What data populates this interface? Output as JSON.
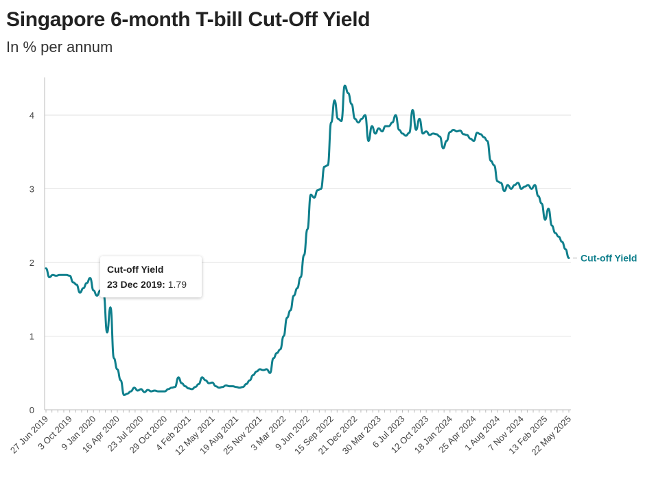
{
  "title": "Singapore 6-month T-bill Cut-Off Yield",
  "subtitle": "In % per annum",
  "colors": {
    "series": "#0f7f8c",
    "grid": "#e2e2e2",
    "axis": "#bbbbbb"
  },
  "tooltip": {
    "series_name": "Cut-off Yield",
    "date": "23 Dec 2019:",
    "value": "1.79"
  },
  "chart_data": {
    "type": "line",
    "title": "Singapore 6-month T-bill Cut-Off Yield",
    "subtitle": "In % per annum",
    "ylim": [
      0,
      4.5
    ],
    "yticks": [
      0,
      1,
      2,
      3,
      4
    ],
    "grid": true,
    "x_tick_labels": [
      "27 Jun 2019",
      "3 Oct 2019",
      "9 Jan 2020",
      "16 Apr 2020",
      "23 Jul 2020",
      "29 Oct 2020",
      "4 Feb 2021",
      "12 May 2021",
      "19 Aug 2021",
      "25 Nov 2021",
      "3 Mar 2022",
      "9 Jun 2022",
      "15 Sep 2022",
      "21 Dec 2022",
      "30 Mar 2023",
      "6 Jul 2023",
      "12 Oct 2023",
      "18 Jan 2024",
      "25 Apr 2024",
      "1 Aug 2024",
      "7 Nov 2024",
      "13 Feb 2025",
      "22 May 2025"
    ],
    "series": [
      {
        "name": "Cut-off Yield",
        "label_position": "end",
        "values": [
          1.92,
          1.8,
          1.83,
          1.82,
          1.83,
          1.83,
          1.83,
          1.82,
          1.73,
          1.7,
          1.59,
          1.65,
          1.72,
          1.79,
          1.62,
          1.55,
          1.62,
          1.56,
          1.05,
          1.39,
          0.7,
          0.55,
          0.4,
          0.2,
          0.22,
          0.25,
          0.3,
          0.26,
          0.28,
          0.24,
          0.27,
          0.25,
          0.26,
          0.25,
          0.25,
          0.25,
          0.28,
          0.3,
          0.31,
          0.44,
          0.36,
          0.32,
          0.29,
          0.28,
          0.31,
          0.35,
          0.44,
          0.4,
          0.36,
          0.37,
          0.32,
          0.3,
          0.31,
          0.33,
          0.32,
          0.32,
          0.31,
          0.3,
          0.31,
          0.35,
          0.4,
          0.47,
          0.52,
          0.55,
          0.54,
          0.55,
          0.5,
          0.7,
          0.77,
          0.82,
          1.0,
          1.25,
          1.35,
          1.55,
          1.65,
          1.8,
          2.1,
          2.45,
          2.92,
          2.88,
          2.98,
          3.0,
          3.3,
          3.32,
          3.9,
          4.2,
          3.95,
          3.92,
          4.4,
          4.3,
          4.15,
          3.95,
          3.9,
          3.95,
          4.0,
          3.65,
          3.85,
          3.75,
          3.82,
          3.78,
          3.85,
          3.85,
          3.9,
          4.0,
          3.8,
          3.75,
          3.72,
          3.76,
          4.07,
          3.8,
          3.95,
          3.75,
          3.78,
          3.73,
          3.75,
          3.74,
          3.71,
          3.55,
          3.65,
          3.77,
          3.8,
          3.78,
          3.79,
          3.74,
          3.73,
          3.68,
          3.65,
          3.76,
          3.74,
          3.7,
          3.65,
          3.38,
          3.32,
          3.1,
          3.08,
          2.97,
          3.05,
          3.0,
          3.05,
          3.08,
          3.0,
          3.03,
          3.05,
          3.0,
          3.05,
          2.9,
          2.8,
          2.58,
          2.73,
          2.5,
          2.4,
          2.35,
          2.28,
          2.18,
          2.06
        ]
      }
    ]
  }
}
